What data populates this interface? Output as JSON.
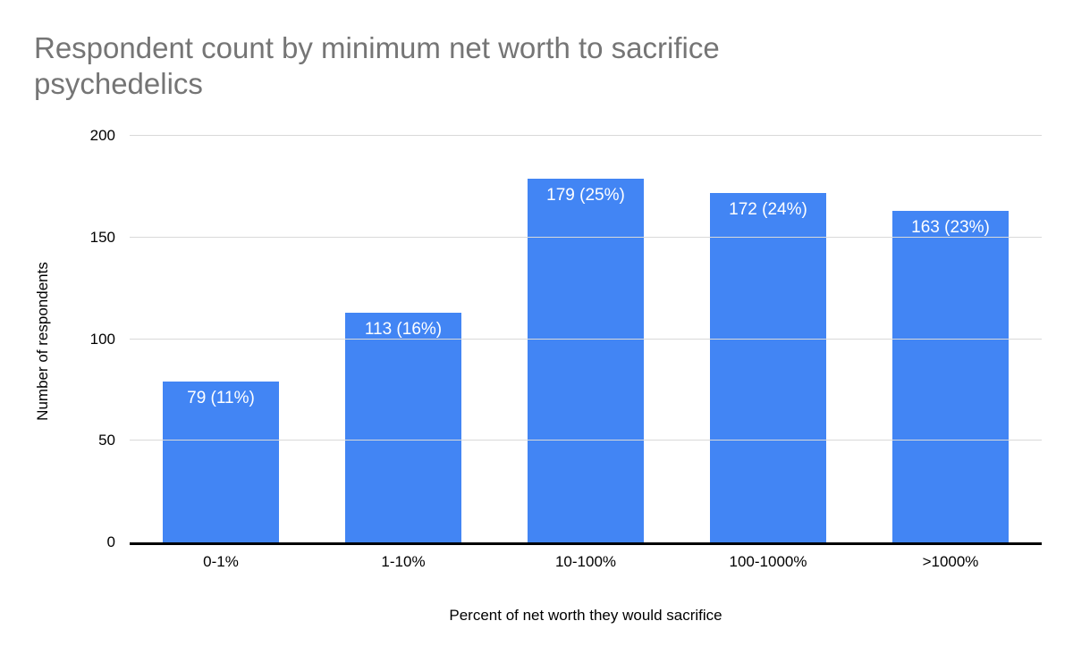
{
  "chart_data": {
    "type": "bar",
    "title": "Respondent count by minimum net worth to sacrifice psychedelics",
    "xlabel": "Percent of net worth they would sacrifice",
    "ylabel": "Number of respondents",
    "categories": [
      "0-1%",
      "1-10%",
      "10-100%",
      "100-1000%",
      ">1000%"
    ],
    "values": [
      79,
      113,
      179,
      172,
      163
    ],
    "labels": [
      "79 (11%)",
      "113 (16%)",
      "179 (25%)",
      "172 (24%)",
      "163 (23%)"
    ],
    "ylim": [
      0,
      200
    ],
    "yticks": [
      0,
      50,
      100,
      150,
      200
    ],
    "bar_color": "#4285f4",
    "label_color": "#ffffff",
    "title_color": "#757575",
    "gridline_color": "#d9d9d9",
    "grid": true,
    "legend": false
  }
}
